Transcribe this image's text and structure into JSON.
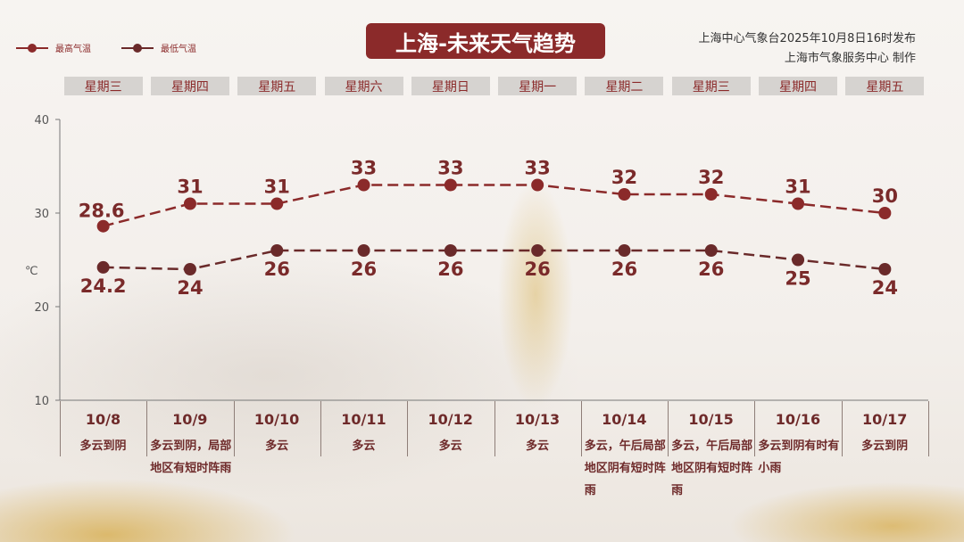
{
  "header": {
    "title": "上海-未来天气趋势",
    "source_line1": "上海中心气象台2025年10月8日16时发布",
    "source_line2": "上海市气象服务中心 制作"
  },
  "legend": [
    {
      "label": "最高气温",
      "color": "#8b2a2a"
    },
    {
      "label": "最低气温",
      "color": "#6a2a2a"
    }
  ],
  "weekdays": [
    "星期三",
    "星期四",
    "星期五",
    "星期六",
    "星期日",
    "星期一",
    "星期二",
    "星期三",
    "星期四",
    "星期五"
  ],
  "descriptions": [
    "多云到阴",
    "多云到阴，局部地区有短时阵雨",
    "多云",
    "多云",
    "多云",
    "多云",
    "多云，午后局部地区阴有短时阵雨",
    "多云，午后局部地区阴有短时阵雨",
    "多云到阴有时有小雨",
    "多云到阴"
  ],
  "chart_data": {
    "type": "line",
    "categories": [
      "10/8",
      "10/9",
      "10/10",
      "10/11",
      "10/12",
      "10/13",
      "10/14",
      "10/15",
      "10/16",
      "10/17"
    ],
    "series": [
      {
        "name": "最高气温",
        "values": [
          28.6,
          31,
          31,
          33,
          33,
          33,
          32,
          32,
          31,
          30
        ],
        "labels": [
          "28.6",
          "31",
          "31",
          "33",
          "33",
          "33",
          "32",
          "32",
          "31",
          "30"
        ],
        "color": "#8b2a2a"
      },
      {
        "name": "最低气温",
        "values": [
          24.2,
          24,
          26,
          26,
          26,
          26,
          26,
          26,
          25,
          24
        ],
        "labels": [
          "24.2",
          "24",
          "26",
          "26",
          "26",
          "26",
          "26",
          "26",
          "25",
          "24"
        ],
        "color": "#6a2a2a"
      }
    ],
    "ylabel": "℃",
    "ylim": [
      10,
      40
    ],
    "yticks": [
      "10",
      "20",
      "30",
      "40"
    ],
    "line_style": "dashed",
    "grid": false
  }
}
